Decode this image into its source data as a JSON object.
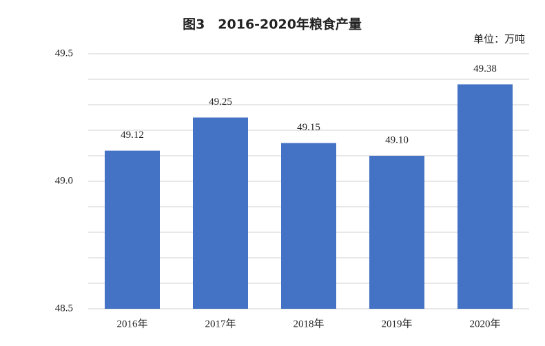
{
  "chart_data": {
    "type": "bar",
    "title": "图3　2016-2020年粮食产量",
    "unit": "单位：万吨",
    "categories": [
      "2016年",
      "2017年",
      "2018年",
      "2019年",
      "2020年"
    ],
    "values": [
      49.12,
      49.25,
      49.15,
      49.1,
      49.38
    ],
    "value_labels": [
      "49.12",
      "49.25",
      "49.15",
      "49.10",
      "49.38"
    ],
    "color": "#4472c4",
    "ylim": [
      48.5,
      49.5
    ],
    "yticks": [
      48.5,
      {
        "value": 49,
        "label": "49.0"
      },
      49.5
    ],
    "minor_grid": [
      48.6,
      48.7,
      48.8,
      48.9,
      49.1,
      49.2,
      49.3,
      49.4
    ],
    "grid": true
  }
}
